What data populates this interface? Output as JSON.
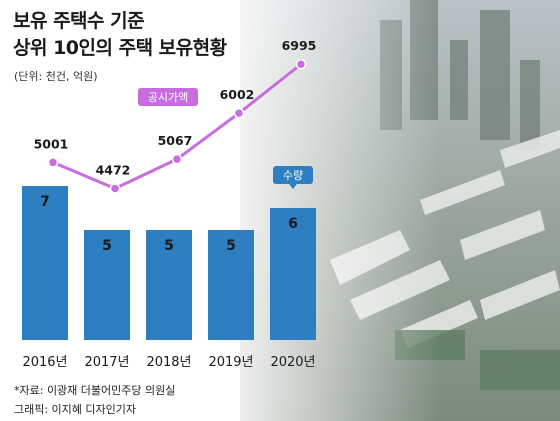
{
  "title_line1": "보유 주택수 기준",
  "title_line2": "상위 10인의 주택 보유현황",
  "unit_note": "(단위: 천건, 억원)",
  "source_note": "*자료: 이광재 더불어민주당 의원실",
  "credit_note": "그래픽: 이지혜 디자인기자",
  "colors": {
    "bar": "#2e7fc1",
    "line": "#c86de0",
    "label_box": "#2e7fc1"
  },
  "chart_data": {
    "type": "bar+line",
    "categories": [
      "2016년",
      "2017년",
      "2018년",
      "2019년",
      "2020년"
    ],
    "series": [
      {
        "name": "수량",
        "type": "bar",
        "values": [
          7,
          5,
          5,
          5,
          6
        ]
      },
      {
        "name": "공시가액",
        "type": "line",
        "values": [
          5001,
          4472,
          5067,
          6002,
          6995
        ]
      }
    ],
    "units": "천건, 억원"
  }
}
